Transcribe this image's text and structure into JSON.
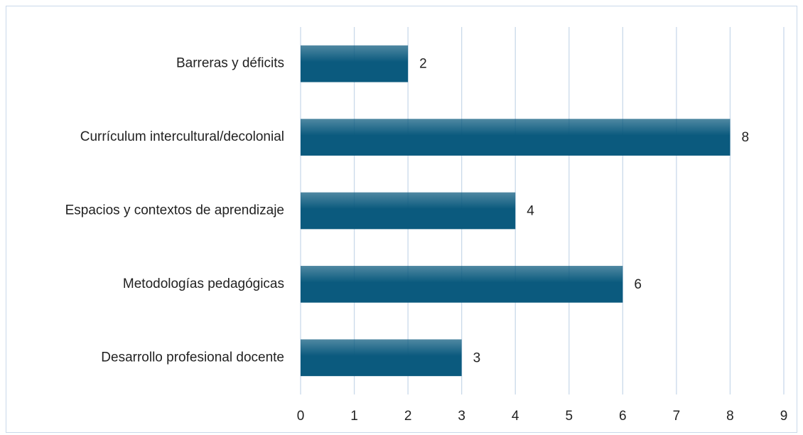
{
  "chart_data": {
    "type": "bar",
    "orientation": "horizontal",
    "categories": [
      "Barreras y déficits",
      "Currículum intercultural/decolonial",
      "Espacios y contextos de aprendizaje",
      "Metodologías pedagógicas",
      "Desarrollo profesional docente"
    ],
    "values": [
      2,
      8,
      4,
      6,
      3
    ],
    "color": "#0b5a7e",
    "xlim": [
      0,
      9
    ],
    "xticks": [
      0,
      1,
      2,
      3,
      4,
      5,
      6,
      7,
      8,
      9
    ],
    "grid": true,
    "data_labels": true
  }
}
